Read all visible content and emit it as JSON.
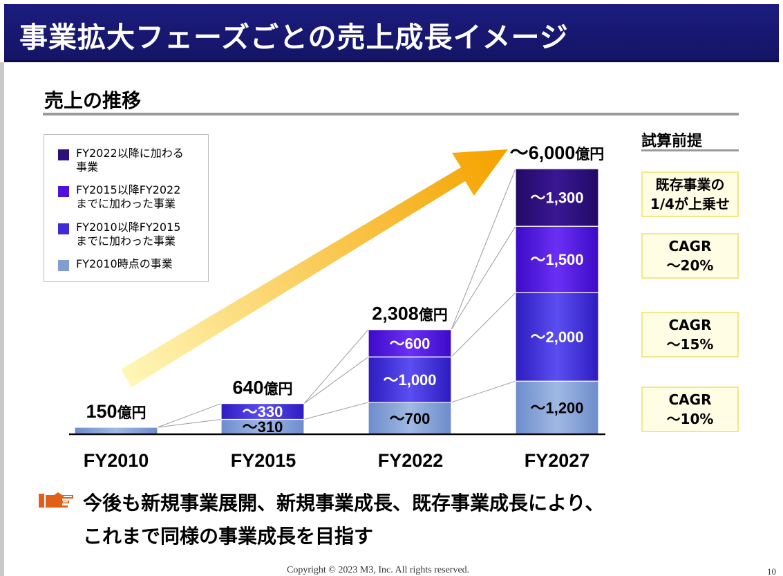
{
  "slide": {
    "title": "事業拡大フェーズごとの売上成長イメージ",
    "section_title": "売上の推移",
    "assumptions_title": "試算前提",
    "copyright": "Copyright © 2023  M3, Inc.  All rights reserved.",
    "page_number": "10"
  },
  "colors": {
    "header": "#17176f",
    "seg_fy2010": "#7f9fd2",
    "seg_fy2015": "#3d2bd6",
    "seg_fy2022": "#4a12dc",
    "seg_after": "#2c0f7a",
    "arrow_start": "#fff5a8",
    "arrow_end": "#f5a300",
    "callout_icon": "#e0601a"
  },
  "legend": {
    "items": [
      {
        "label": "FY2022以降に加わる\n事業",
        "color": "#2c0f7a"
      },
      {
        "label": "FY2015以降FY2022\nまでに加わった事業",
        "color": "#4a12dc"
      },
      {
        "label": "FY2010以降FY2015\nまでに加わった事業",
        "color": "#3d2bd6"
      },
      {
        "label": "FY2010時点の事業",
        "color": "#7f9fd2"
      }
    ]
  },
  "assumptions": [
    {
      "text": "既存事業の\n1/4が上乗せ"
    },
    {
      "text": "CAGR\n～20%"
    },
    {
      "text": "CAGR\n～15%"
    },
    {
      "text": "CAGR\n～10%"
    }
  ],
  "callout": {
    "line1": "今後も新規事業展開、新規事業成長、既存事業成長により、",
    "line2": "これまで同様の事業成長を目指す"
  },
  "chart_data": {
    "type": "bar",
    "stacked": true,
    "unit": "億円",
    "categories": [
      "FY2010",
      "FY2015",
      "FY2022",
      "FY2027"
    ],
    "totals": [
      150,
      640,
      2308,
      6000
    ],
    "total_labels": [
      "150",
      "640",
      "2,308",
      "～6,000"
    ],
    "series": [
      {
        "name": "FY2010時点の事業",
        "values": [
          150,
          310,
          700,
          1200
        ],
        "labels": [
          "",
          "～310",
          "～700",
          "～1,200"
        ]
      },
      {
        "name": "FY2010以降FY2015までに加わった事業",
        "values": [
          0,
          330,
          1000,
          2000
        ],
        "labels": [
          "",
          "～330",
          "～1,000",
          "～2,000"
        ]
      },
      {
        "name": "FY2015以降FY2022までに加わった事業",
        "values": [
          0,
          0,
          600,
          1500
        ],
        "labels": [
          "",
          "",
          "～600",
          "～1,500"
        ]
      },
      {
        "name": "FY2022以降に加わる事業",
        "values": [
          0,
          0,
          0,
          1300
        ],
        "labels": [
          "",
          "",
          "",
          "～1,300"
        ]
      }
    ],
    "ylim": [
      0,
      6000
    ],
    "axes_visible": false
  }
}
